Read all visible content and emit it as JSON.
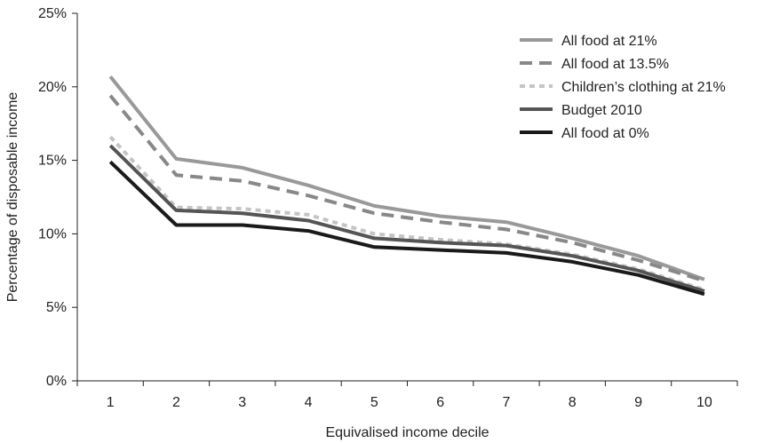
{
  "chart_data": {
    "type": "line",
    "title": "",
    "xlabel": "Equivalised income decile",
    "ylabel": "Percentage of disposable income",
    "categories": [
      "1",
      "2",
      "3",
      "4",
      "5",
      "6",
      "7",
      "8",
      "9",
      "10"
    ],
    "y_ticks": [
      "0%",
      "5%",
      "10%",
      "15%",
      "20%",
      "25%"
    ],
    "ylim": [
      0,
      25
    ],
    "grid": false,
    "legend_position": "top-right",
    "series": [
      {
        "name": "All food at 21%",
        "color": "#999999",
        "dash": "solid",
        "values": [
          20.7,
          15.1,
          14.5,
          13.3,
          11.9,
          11.2,
          10.8,
          9.7,
          8.5,
          6.9
        ]
      },
      {
        "name": "All food at 13.5%",
        "color": "#888888",
        "dash": "long-dash",
        "values": [
          19.4,
          14.0,
          13.6,
          12.6,
          11.4,
          10.8,
          10.3,
          9.4,
          8.2,
          6.8
        ]
      },
      {
        "name": "Children’s clothing at 21%",
        "color": "#c4c4c4",
        "dash": "short-dash",
        "values": [
          16.6,
          11.8,
          11.7,
          11.3,
          10.0,
          9.6,
          9.3,
          8.6,
          7.6,
          6.2
        ]
      },
      {
        "name": "Budget 2010",
        "color": "#555555",
        "dash": "solid",
        "values": [
          16.0,
          11.6,
          11.4,
          10.9,
          9.7,
          9.4,
          9.2,
          8.5,
          7.5,
          6.1
        ]
      },
      {
        "name": "All food at 0%",
        "color": "#1a1a1a",
        "dash": "solid",
        "values": [
          14.9,
          10.6,
          10.6,
          10.2,
          9.1,
          8.9,
          8.7,
          8.1,
          7.2,
          5.9
        ]
      }
    ]
  }
}
